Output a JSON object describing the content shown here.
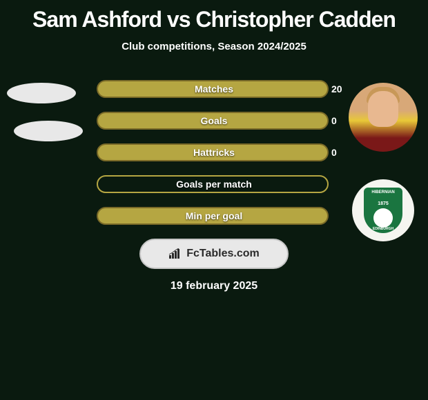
{
  "title": "Sam Ashford vs Christopher Cadden",
  "subtitle": "Club competitions, Season 2024/2025",
  "footer_logo": "FcTables.com",
  "date": "19 february 2025",
  "colors": {
    "background": "#0a1a0f",
    "bar_fill": "#b5a642",
    "bar_border_dark": "#8a7a32",
    "text": "#ffffff"
  },
  "player_left": {
    "name": "Sam Ashford"
  },
  "player_right": {
    "name": "Christopher Cadden",
    "crest_top": "HIBERNIAN",
    "crest_year": "1875",
    "crest_bottom": "EDINBURGH"
  },
  "stats": [
    {
      "label": "Matches",
      "left_val": "",
      "right_val": "20",
      "left_width": 0,
      "right_width": 336,
      "fill": "#b5a642",
      "border": "#7a6a28"
    },
    {
      "label": "Goals",
      "left_val": "",
      "right_val": "0",
      "left_width": 0,
      "right_width": 336,
      "fill": "#b5a642",
      "border": "#7a6a28"
    },
    {
      "label": "Hattricks",
      "left_val": "",
      "right_val": "0",
      "left_width": 0,
      "right_width": 336,
      "fill": "#b5a642",
      "border": "#7a6a28"
    },
    {
      "label": "Goals per match",
      "left_val": "",
      "right_val": "",
      "left_width": 0,
      "right_width": 336,
      "fill": "transparent",
      "border": "#b5a642"
    },
    {
      "label": "Min per goal",
      "left_val": "",
      "right_val": "",
      "left_width": 0,
      "right_width": 336,
      "fill": "#b5a642",
      "border": "#7a6a28"
    }
  ]
}
